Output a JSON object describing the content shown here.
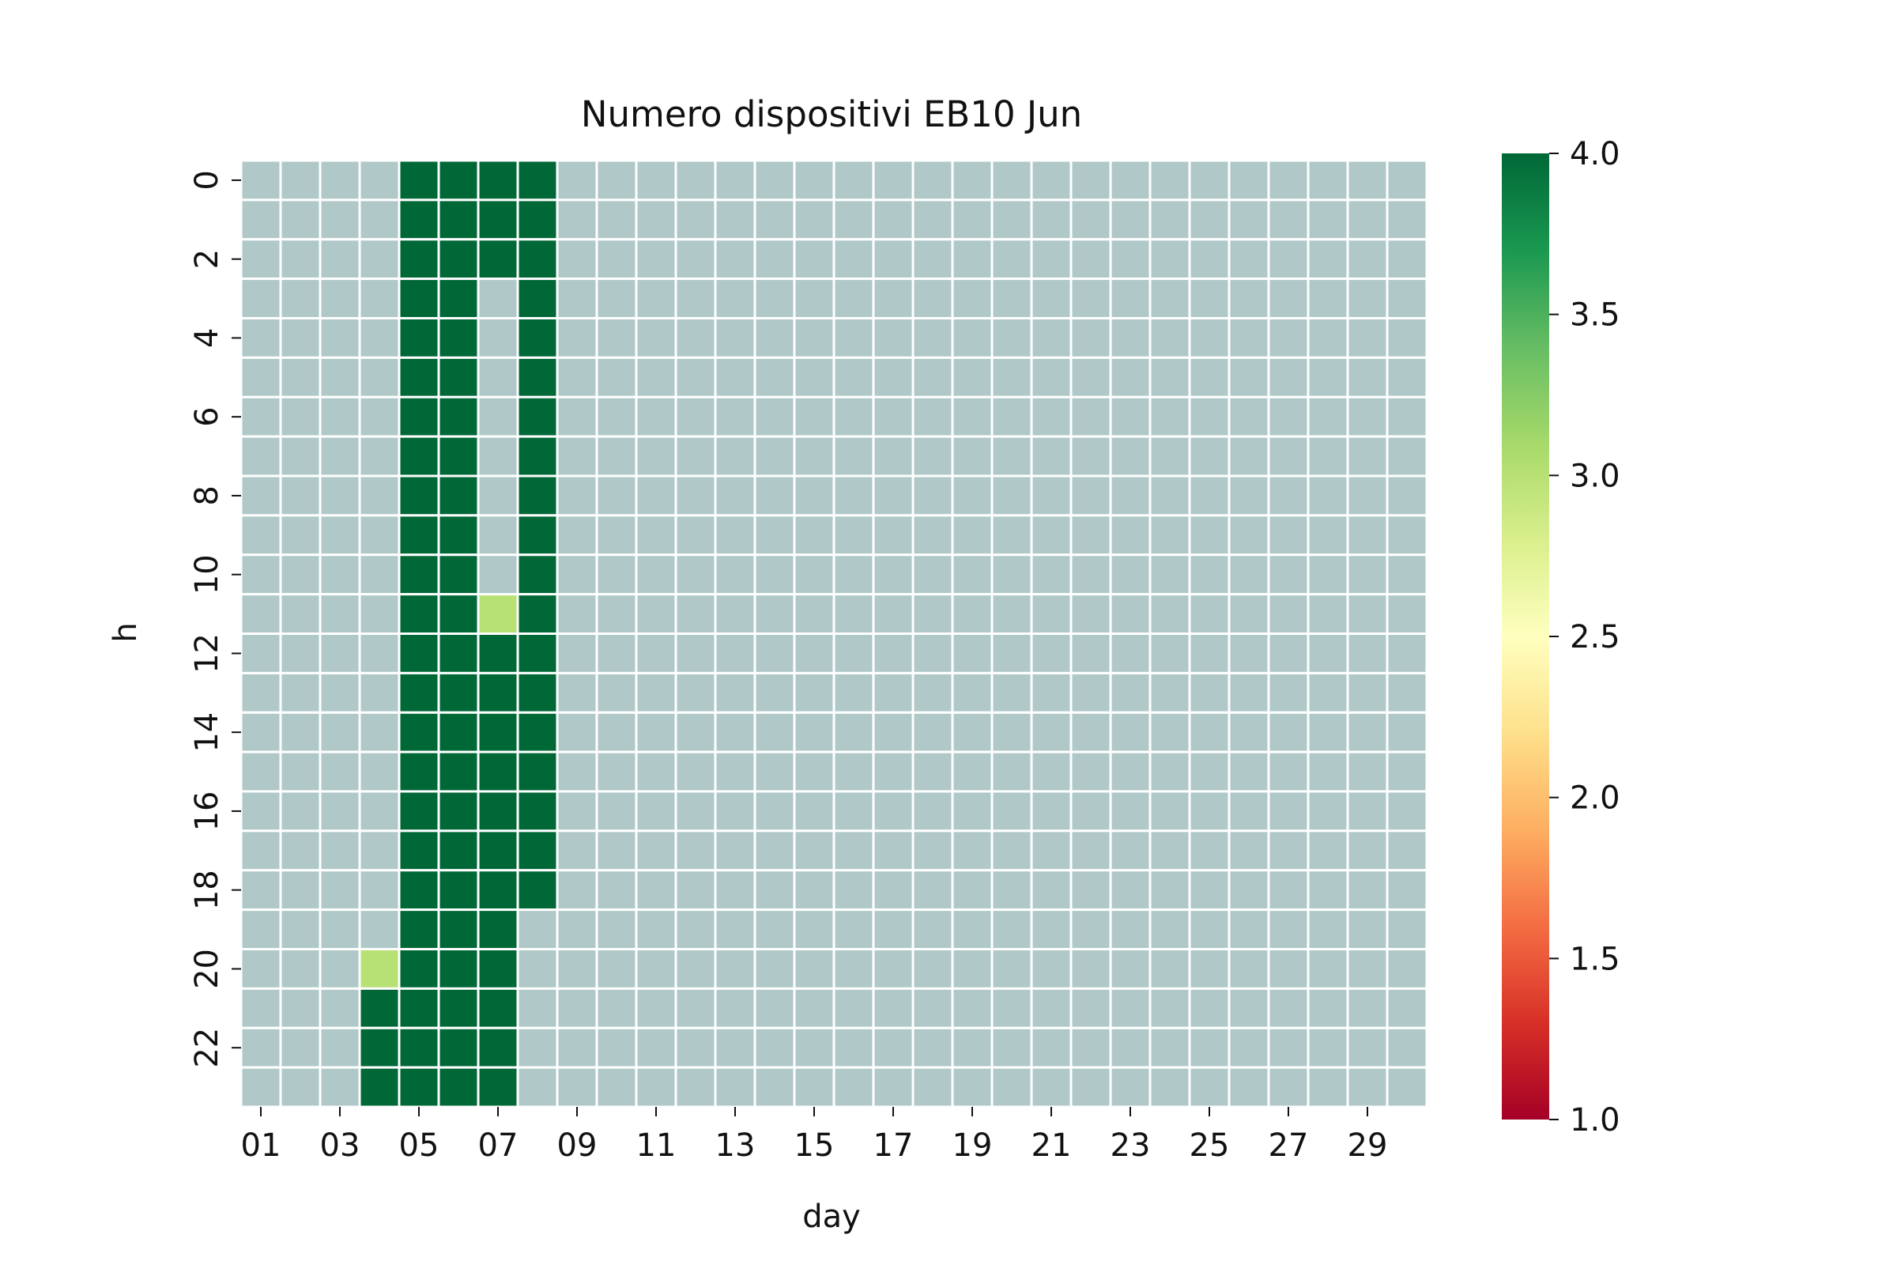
{
  "chart_data": {
    "type": "heatmap",
    "title": "Numero dispositivi EB10 Jun",
    "xlabel": "day",
    "ylabel": "h",
    "x_categories": [
      "01",
      "02",
      "03",
      "04",
      "05",
      "06",
      "07",
      "08",
      "09",
      "10",
      "11",
      "12",
      "13",
      "14",
      "15",
      "16",
      "17",
      "18",
      "19",
      "20",
      "21",
      "22",
      "23",
      "24",
      "25",
      "26",
      "27",
      "28",
      "29",
      "30"
    ],
    "x_tick_labels": [
      "01",
      "03",
      "05",
      "07",
      "09",
      "11",
      "13",
      "15",
      "17",
      "19",
      "21",
      "23",
      "25",
      "27",
      "29"
    ],
    "y_categories": [
      "0",
      "1",
      "2",
      "3",
      "4",
      "5",
      "6",
      "7",
      "8",
      "9",
      "10",
      "11",
      "12",
      "13",
      "14",
      "15",
      "16",
      "17",
      "18",
      "19",
      "20",
      "21",
      "22",
      "23"
    ],
    "y_tick_labels": [
      "0",
      "2",
      "4",
      "6",
      "8",
      "10",
      "12",
      "14",
      "16",
      "18",
      "20",
      "22"
    ],
    "missing_color": "#b0c8c8",
    "colorbar": {
      "min": 1.0,
      "max": 4.0,
      "colormap": "RdYlGn",
      "ticks": [
        "1.0",
        "1.5",
        "2.0",
        "2.5",
        "3.0",
        "3.5",
        "4.0"
      ]
    },
    "series": [
      {
        "day": "04",
        "values": [
          null,
          null,
          null,
          null,
          null,
          null,
          null,
          null,
          null,
          null,
          null,
          null,
          null,
          null,
          null,
          null,
          null,
          null,
          null,
          null,
          3,
          4,
          4,
          4
        ]
      },
      {
        "day": "05",
        "values": [
          4,
          4,
          4,
          4,
          4,
          4,
          4,
          4,
          4,
          4,
          4,
          4,
          4,
          4,
          4,
          4,
          4,
          4,
          4,
          4,
          4,
          4,
          4,
          4
        ]
      },
      {
        "day": "06",
        "values": [
          4,
          4,
          4,
          4,
          4,
          4,
          4,
          4,
          4,
          4,
          4,
          4,
          4,
          4,
          4,
          4,
          4,
          4,
          4,
          4,
          4,
          4,
          4,
          4
        ]
      },
      {
        "day": "07",
        "values": [
          4,
          4,
          4,
          null,
          null,
          null,
          null,
          null,
          null,
          null,
          null,
          3,
          4,
          4,
          4,
          4,
          4,
          4,
          4,
          4,
          4,
          4,
          4,
          4
        ]
      },
      {
        "day": "08",
        "values": [
          4,
          4,
          4,
          4,
          4,
          4,
          4,
          4,
          4,
          4,
          4,
          4,
          4,
          4,
          4,
          4,
          4,
          4,
          4,
          null,
          null,
          null,
          null,
          null
        ]
      }
    ]
  }
}
